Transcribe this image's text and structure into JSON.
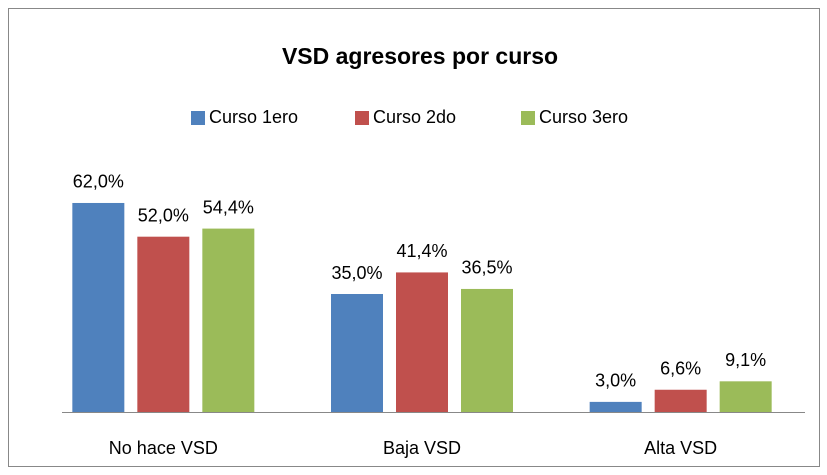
{
  "chart_data": {
    "type": "bar",
    "title": "VSD agresores por curso",
    "categories": [
      "No hace VSD",
      "Baja VSD",
      "Alta VSD"
    ],
    "series": [
      {
        "name": "Curso 1ero",
        "color": "#4f81bd",
        "values": [
          62.0,
          35.0,
          3.0
        ],
        "value_labels": [
          "62,0%",
          "35,0%",
          "3,0%"
        ]
      },
      {
        "name": "Curso 2do",
        "color": "#c0504d",
        "values": [
          52.0,
          41.4,
          6.6
        ],
        "value_labels": [
          "52,0%",
          "41,4%",
          "6,6%"
        ]
      },
      {
        "name": "Curso 3ero",
        "color": "#9bbb59",
        "values": [
          54.4,
          36.5,
          9.1
        ],
        "value_labels": [
          "54,4%",
          "36,5%",
          "9,1%"
        ]
      }
    ],
    "ylim": [
      0,
      70
    ],
    "legend": "top"
  }
}
